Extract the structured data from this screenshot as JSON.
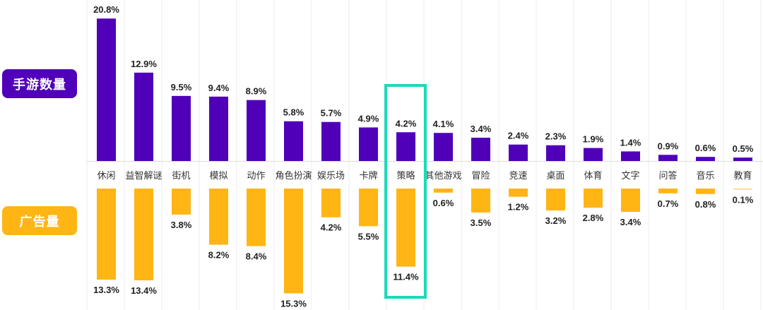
{
  "chart_data": {
    "type": "bar",
    "title": "",
    "xlabel": "",
    "ylabel": "",
    "categories": [
      "休闲",
      "益智解谜",
      "街机",
      "模拟",
      "动作",
      "角色扮演",
      "娱乐场",
      "卡牌",
      "策略",
      "其他游戏",
      "冒险",
      "竞速",
      "桌面",
      "体育",
      "文字",
      "问答",
      "音乐",
      "教育"
    ],
    "series": [
      {
        "name": "手游数量",
        "color": "#5000b9",
        "direction": "up",
        "values": [
          20.8,
          12.9,
          9.5,
          9.4,
          8.9,
          5.8,
          5.7,
          4.9,
          4.2,
          4.1,
          3.4,
          2.4,
          2.3,
          1.9,
          1.4,
          0.9,
          0.6,
          0.5
        ],
        "labels": [
          "20.8%",
          "12.9%",
          "9.5%",
          "9.4%",
          "8.9%",
          "5.8%",
          "5.7%",
          "4.9%",
          "4.2%",
          "4.1%",
          "3.4%",
          "2.4%",
          "2.3%",
          "1.9%",
          "1.4%",
          "0.9%",
          "0.6%",
          "0.5%"
        ]
      },
      {
        "name": "广告量",
        "color": "#ffb514",
        "direction": "down",
        "values": [
          13.3,
          13.4,
          3.8,
          8.2,
          8.4,
          15.3,
          4.2,
          5.5,
          11.4,
          0.6,
          3.5,
          1.2,
          3.2,
          2.8,
          3.4,
          0.7,
          0.8,
          0.1
        ],
        "labels": [
          "13.3%",
          "13.4%",
          "3.8%",
          "8.2%",
          "8.4%",
          "15.3%",
          "4.2%",
          "5.5%",
          "11.4%",
          "0.6%",
          "3.5%",
          "1.2%",
          "3.2%",
          "2.8%",
          "3.4%",
          "0.7%",
          "0.8%",
          "0.1%"
        ]
      }
    ],
    "unit": "%",
    "highlight": {
      "category": "策略",
      "color": "#1ed9b8"
    },
    "grid": true,
    "legend_placement": "left"
  },
  "legend": {
    "top_label": "手游数量",
    "bottom_label": "广告量"
  }
}
